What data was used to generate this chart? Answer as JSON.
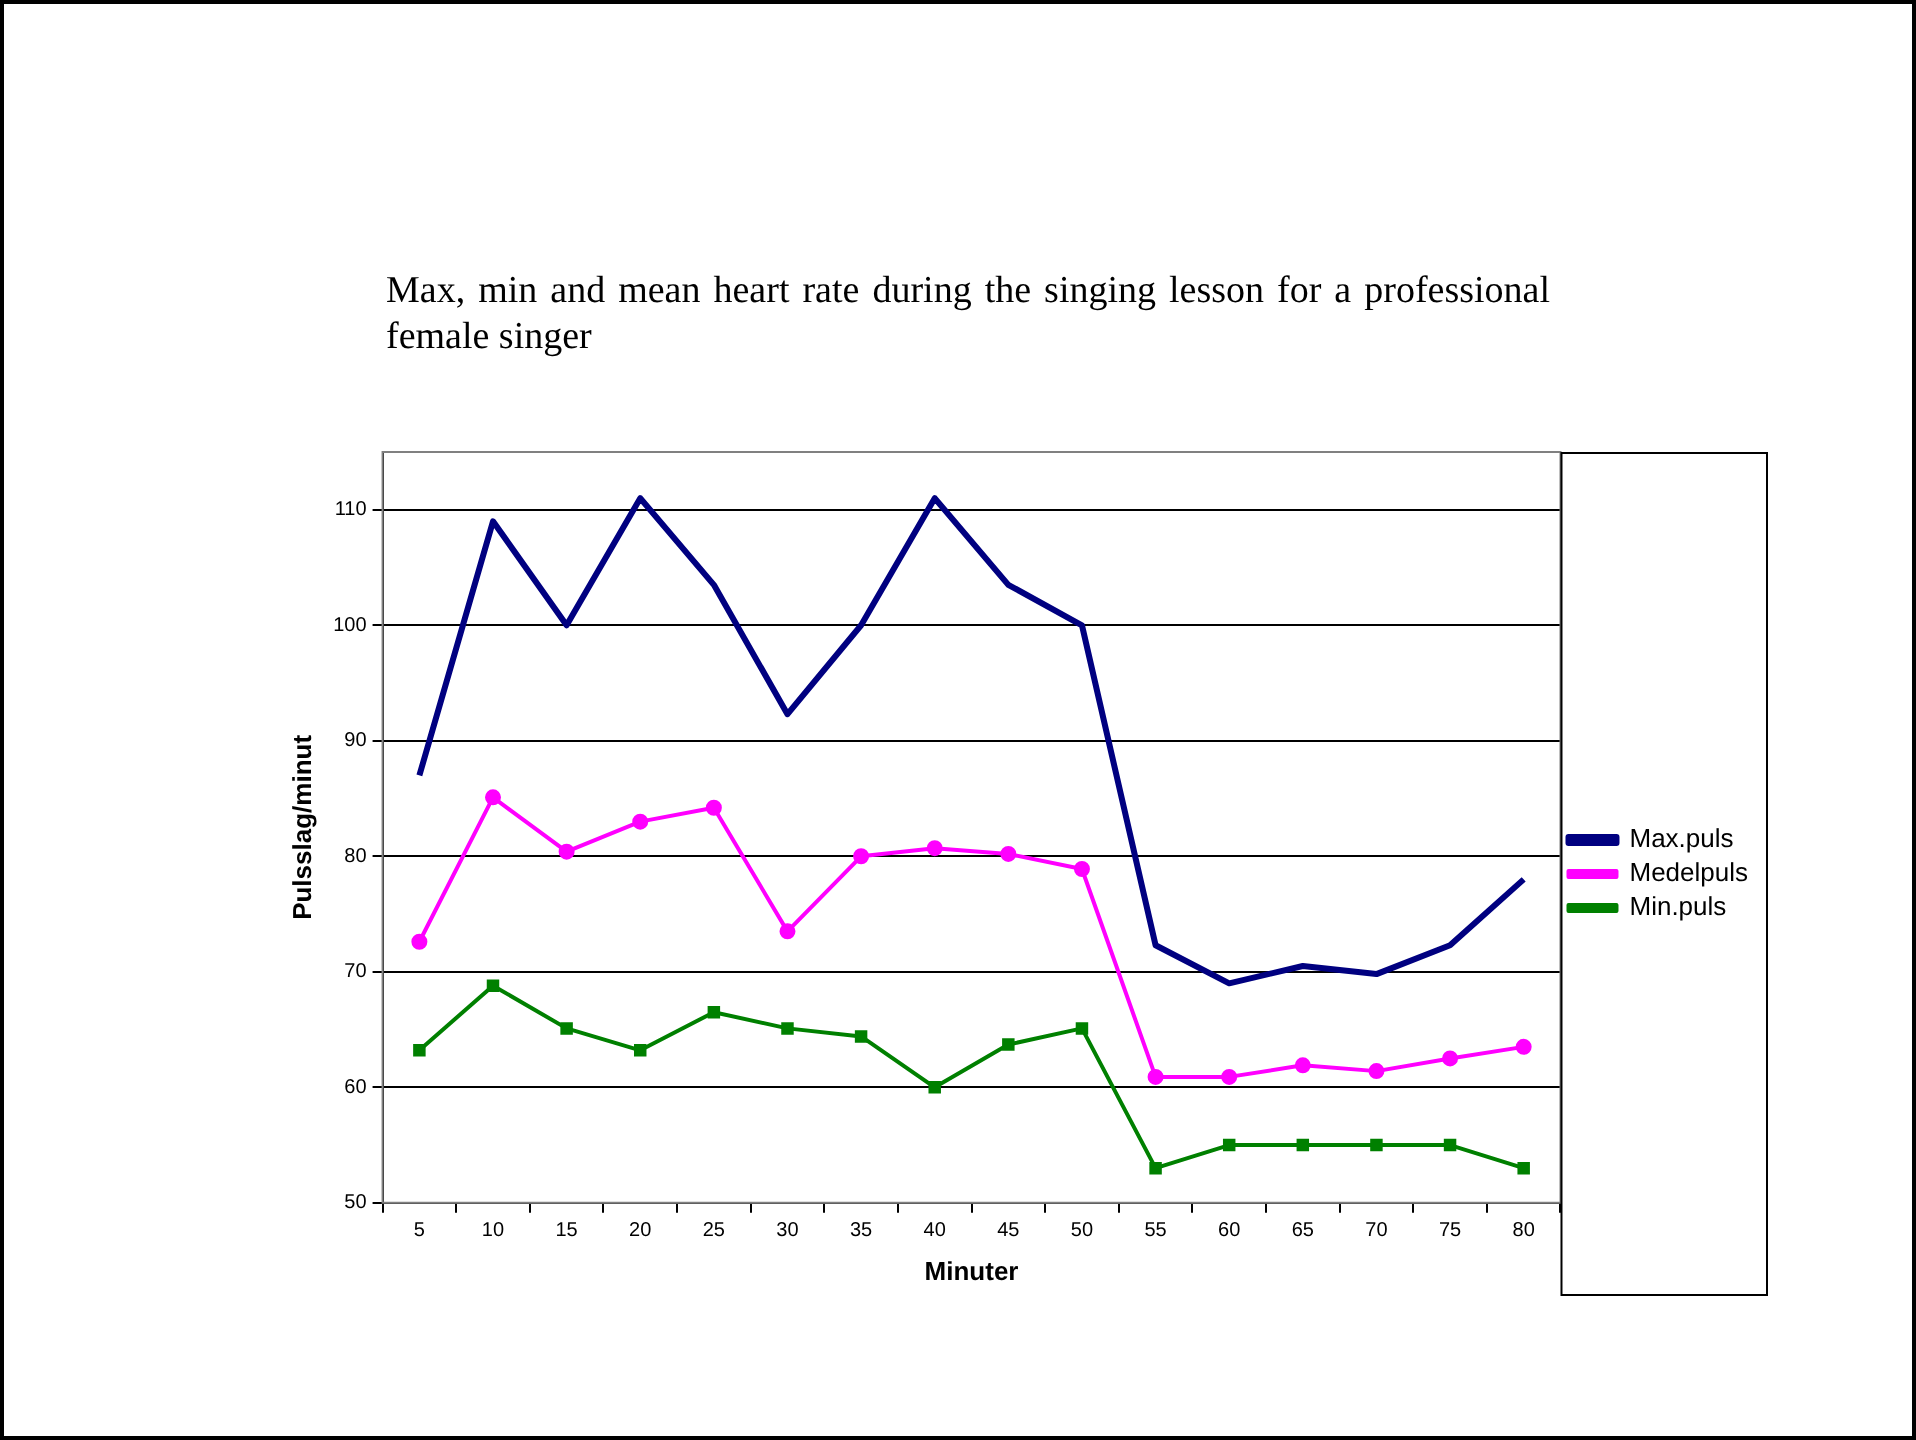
{
  "chart_data": {
    "type": "line",
    "title": "Max, min and mean heart rate during the singing lesson for a professional female singer",
    "xlabel": "Minuter",
    "ylabel": "Pulsslag/minut",
    "categories": [
      "5",
      "10",
      "15",
      "20",
      "25",
      "30",
      "35",
      "40",
      "45",
      "50",
      "55",
      "60",
      "65",
      "70",
      "75",
      "80"
    ],
    "series": [
      {
        "name": "Max.puls",
        "color": "#000080",
        "marker": "none",
        "values": [
          87,
          109,
          100,
          111,
          103.5,
          92.3,
          100,
          111,
          103.5,
          100,
          72.3,
          69,
          70.5,
          69.8,
          72.3,
          78
        ]
      },
      {
        "name": "Medelpuls",
        "color": "#ff00ff",
        "marker": "circle",
        "values": [
          72.6,
          85.1,
          80.4,
          83,
          84.2,
          73.5,
          80,
          80.7,
          80.2,
          78.9,
          60.9,
          60.9,
          61.9,
          61.4,
          62.5,
          63.5
        ]
      },
      {
        "name": "Min.puls",
        "color": "#008000",
        "marker": "square",
        "values": [
          63.2,
          68.8,
          65.1,
          63.2,
          66.5,
          65.1,
          64.4,
          60,
          63.7,
          65.1,
          53,
          55,
          55,
          55,
          55,
          53
        ]
      }
    ],
    "ylim": [
      50,
      115
    ],
    "yticks": [
      50,
      60,
      70,
      80,
      90,
      100,
      110
    ],
    "grid": "y",
    "legend": "right"
  }
}
